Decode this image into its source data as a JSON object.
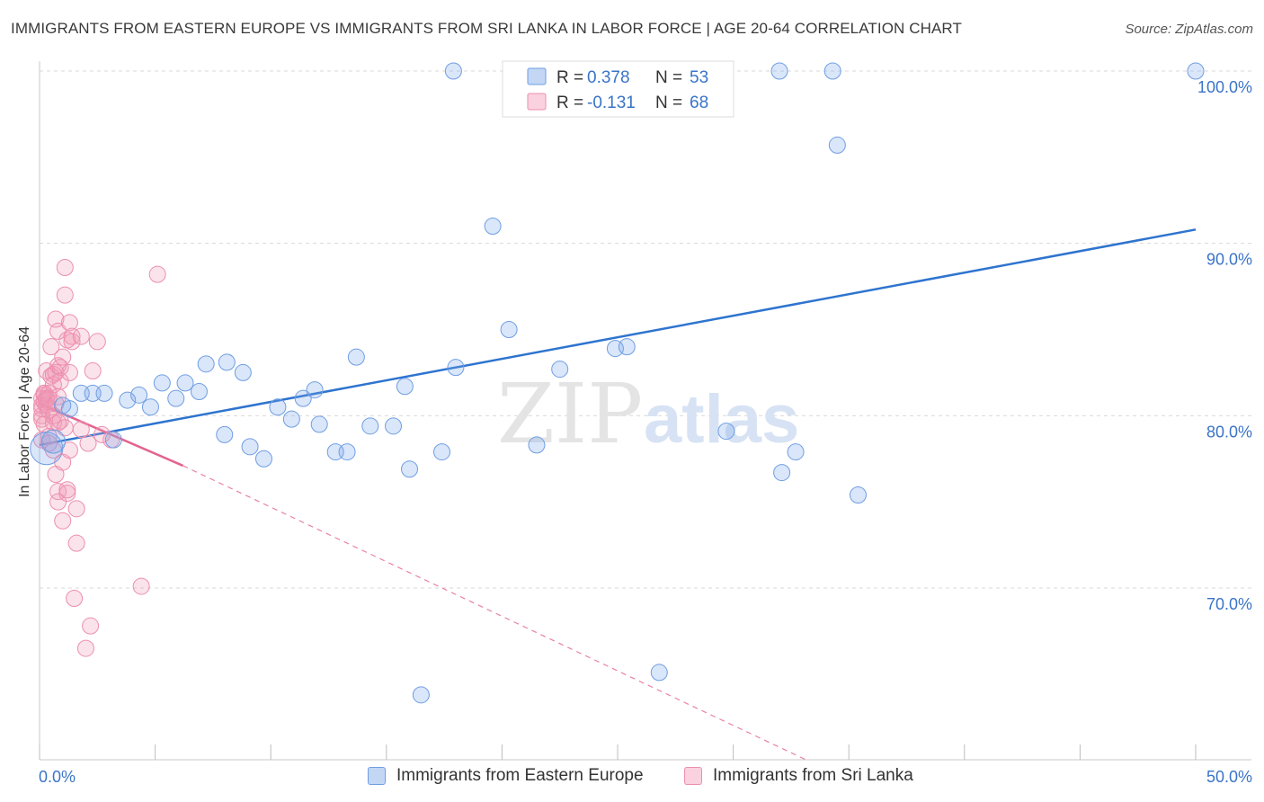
{
  "header": {
    "title": "IMMIGRANTS FROM EASTERN EUROPE VS IMMIGRANTS FROM SRI LANKA IN LABOR FORCE | AGE 20-64 CORRELATION CHART",
    "source": "Source: ZipAtlas.com"
  },
  "watermark": {
    "zip": "ZIP",
    "atlas": "atlas"
  },
  "chart_data": {
    "type": "scatter",
    "title": "IMMIGRANTS FROM EASTERN EUROPE VS IMMIGRANTS FROM SRI LANKA IN LABOR FORCE | AGE 20-64 CORRELATION CHART",
    "xlabel": "",
    "ylabel": "In Labor Force | Age 20-64",
    "xlim": [
      0,
      50
    ],
    "ylim": [
      60,
      101.5
    ],
    "x_tick_labels": [
      "0.0%",
      "50.0%"
    ],
    "y_ticks": [
      70,
      80,
      90,
      100
    ],
    "y_tick_labels": [
      "70.0%",
      "80.0%",
      "90.0%",
      "100.0%"
    ],
    "grid": true,
    "legend_placement": "top-center",
    "series": [
      {
        "name": "Immigrants from Eastern Europe",
        "color": "#7aa6e8",
        "line_color": "#2e74cf",
        "r_label": "R =",
        "r_value": "0.378",
        "n_label": "N =",
        "n_value": "53",
        "trend": {
          "x": [
            0,
            50
          ],
          "y": [
            78.3,
            90.8
          ]
        },
        "points": [
          [
            0.3,
            78.1
          ],
          [
            0.6,
            78.5
          ],
          [
            1.0,
            80.6
          ],
          [
            1.3,
            80.4
          ],
          [
            1.8,
            81.3
          ],
          [
            2.3,
            81.3
          ],
          [
            2.8,
            81.3
          ],
          [
            3.2,
            78.6
          ],
          [
            3.8,
            80.9
          ],
          [
            4.3,
            81.2
          ],
          [
            4.8,
            80.5
          ],
          [
            5.3,
            81.9
          ],
          [
            5.9,
            81.0
          ],
          [
            6.3,
            81.9
          ],
          [
            6.9,
            81.4
          ],
          [
            7.2,
            83.0
          ],
          [
            8.0,
            78.9
          ],
          [
            8.1,
            83.1
          ],
          [
            8.8,
            82.5
          ],
          [
            9.1,
            78.2
          ],
          [
            9.7,
            77.5
          ],
          [
            10.3,
            80.5
          ],
          [
            10.9,
            79.8
          ],
          [
            11.4,
            81.0
          ],
          [
            11.9,
            81.5
          ],
          [
            12.1,
            79.5
          ],
          [
            12.8,
            77.9
          ],
          [
            13.3,
            77.9
          ],
          [
            13.7,
            83.4
          ],
          [
            14.3,
            79.4
          ],
          [
            15.3,
            79.4
          ],
          [
            15.8,
            81.7
          ],
          [
            16.0,
            76.9
          ],
          [
            16.5,
            63.8
          ],
          [
            17.4,
            77.9
          ],
          [
            17.9,
            100.0
          ],
          [
            18.0,
            82.8
          ],
          [
            19.6,
            91.0
          ],
          [
            20.3,
            85.0
          ],
          [
            21.5,
            78.3
          ],
          [
            22.5,
            82.7
          ],
          [
            24.9,
            83.9
          ],
          [
            25.4,
            84.0
          ],
          [
            26.8,
            65.1
          ],
          [
            26.9,
            100.0
          ],
          [
            29.7,
            79.1
          ],
          [
            32.0,
            100.0
          ],
          [
            32.1,
            76.7
          ],
          [
            32.7,
            77.9
          ],
          [
            34.3,
            100.0
          ],
          [
            34.5,
            95.7
          ],
          [
            35.4,
            75.4
          ],
          [
            50.0,
            100.0
          ]
        ],
        "point_size": [
          36,
          13,
          9,
          9,
          9,
          9,
          9,
          9,
          9,
          9,
          9,
          9,
          9,
          9,
          9,
          9,
          9,
          9,
          9,
          9,
          9,
          9,
          9,
          9,
          9,
          9,
          9,
          9,
          9,
          9,
          9,
          9,
          9,
          9,
          9,
          9,
          9,
          9,
          9,
          9,
          9,
          9,
          9,
          9,
          9,
          9,
          9,
          9,
          9,
          9,
          9,
          9,
          9
        ]
      },
      {
        "name": "Immigrants from Sri Lanka",
        "color": "#f29ab8",
        "line_color": "#e4638f",
        "r_label": "R =",
        "r_value": "-0.131",
        "n_label": "N =",
        "n_value": "68",
        "trend": {
          "x": [
            0,
            6.2
          ],
          "y": [
            80.7,
            77.1
          ]
        },
        "trend_dashed": {
          "x": [
            6.2,
            33.2
          ],
          "y": [
            77.1,
            60.0
          ]
        },
        "points": [
          [
            0.1,
            80.0
          ],
          [
            0.1,
            81.0
          ],
          [
            0.1,
            78.6
          ],
          [
            0.1,
            79.8
          ],
          [
            0.1,
            80.6
          ],
          [
            0.1,
            80.4
          ],
          [
            0.2,
            81.2
          ],
          [
            0.2,
            81.3
          ],
          [
            0.2,
            80.8
          ],
          [
            0.2,
            79.5
          ],
          [
            0.2,
            81.3
          ],
          [
            0.3,
            81.0
          ],
          [
            0.3,
            80.6
          ],
          [
            0.3,
            82.6
          ],
          [
            0.3,
            80.9
          ],
          [
            0.4,
            81.3
          ],
          [
            0.4,
            80.3
          ],
          [
            0.4,
            81.0
          ],
          [
            0.4,
            78.8
          ],
          [
            0.4,
            78.4
          ],
          [
            0.5,
            82.3
          ],
          [
            0.5,
            84.0
          ],
          [
            0.6,
            82.4
          ],
          [
            0.6,
            81.8
          ],
          [
            0.6,
            80.0
          ],
          [
            0.6,
            79.6
          ],
          [
            0.6,
            78.0
          ],
          [
            0.7,
            82.5
          ],
          [
            0.7,
            80.7
          ],
          [
            0.7,
            85.6
          ],
          [
            0.7,
            76.6
          ],
          [
            0.8,
            84.9
          ],
          [
            0.8,
            82.9
          ],
          [
            0.8,
            81.1
          ],
          [
            0.8,
            79.6
          ],
          [
            0.8,
            75.6
          ],
          [
            0.8,
            75.0
          ],
          [
            0.9,
            82.8
          ],
          [
            0.9,
            82.0
          ],
          [
            0.9,
            79.7
          ],
          [
            1.0,
            83.4
          ],
          [
            1.0,
            77.3
          ],
          [
            1.0,
            73.9
          ],
          [
            1.1,
            88.6
          ],
          [
            1.1,
            87.0
          ],
          [
            1.1,
            79.3
          ],
          [
            1.2,
            84.4
          ],
          [
            1.2,
            75.7
          ],
          [
            1.2,
            75.5
          ],
          [
            1.3,
            85.4
          ],
          [
            1.3,
            82.5
          ],
          [
            1.3,
            78.0
          ],
          [
            1.4,
            84.6
          ],
          [
            1.4,
            84.3
          ],
          [
            1.5,
            69.4
          ],
          [
            1.6,
            74.6
          ],
          [
            1.6,
            72.6
          ],
          [
            1.8,
            84.6
          ],
          [
            1.8,
            79.2
          ],
          [
            2.0,
            66.5
          ],
          [
            2.1,
            78.4
          ],
          [
            2.2,
            67.8
          ],
          [
            2.3,
            82.6
          ],
          [
            2.5,
            84.3
          ],
          [
            2.7,
            78.9
          ],
          [
            3.1,
            78.6
          ],
          [
            4.4,
            70.1
          ],
          [
            5.1,
            88.2
          ]
        ],
        "point_size": [
          9,
          9,
          9,
          9,
          9,
          9,
          9,
          9,
          9,
          9,
          9,
          9,
          9,
          9,
          9,
          9,
          9,
          9,
          9,
          9,
          9,
          9,
          9,
          9,
          9,
          9,
          9,
          9,
          9,
          9,
          9,
          9,
          9,
          9,
          9,
          9,
          9,
          9,
          9,
          9,
          9,
          9,
          9,
          9,
          9,
          9,
          9,
          9,
          9,
          9,
          9,
          9,
          9,
          9,
          9,
          9,
          9,
          9,
          9,
          9,
          9,
          9,
          9,
          9,
          9,
          9,
          9,
          9
        ]
      }
    ]
  }
}
